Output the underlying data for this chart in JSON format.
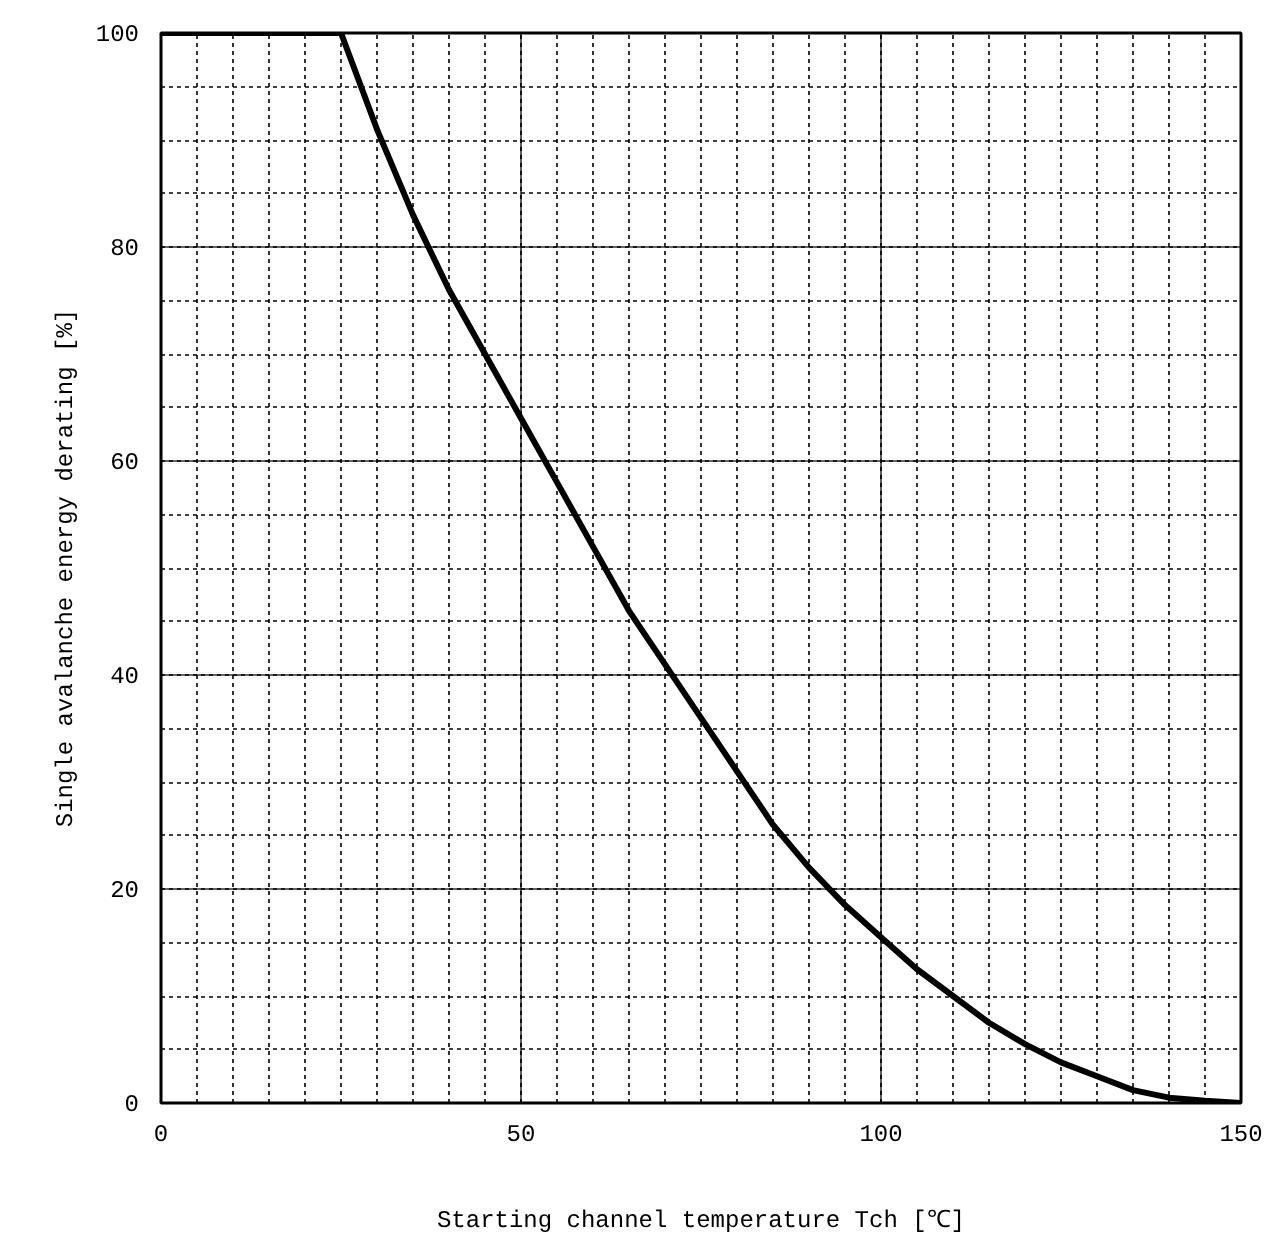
{
  "chart_data": {
    "type": "line",
    "xlabel": "Starting channel temperature Tch [℃]",
    "ylabel": "Single avalanche energy derating [%]",
    "x": [
      0,
      25,
      30,
      35,
      40,
      45,
      50,
      55,
      60,
      65,
      70,
      75,
      80,
      85,
      90,
      95,
      100,
      105,
      110,
      115,
      120,
      125,
      130,
      135,
      140,
      145,
      150
    ],
    "series": [
      {
        "color": "#000000",
        "values": [
          100,
          100,
          91,
          83,
          76,
          70,
          64,
          58,
          52,
          46,
          41,
          36,
          31,
          26,
          22,
          18.5,
          15.5,
          12.5,
          10,
          7.5,
          5.5,
          3.8,
          2.5,
          1.2,
          0.5,
          0.2,
          0
        ]
      }
    ],
    "xlim": [
      0,
      150
    ],
    "ylim": [
      0,
      100
    ],
    "xticks": [
      0,
      50,
      100,
      150
    ],
    "yticks": [
      0,
      20,
      40,
      60,
      80,
      100
    ],
    "grid": true,
    "line_style": "solid",
    "marker": "none"
  }
}
